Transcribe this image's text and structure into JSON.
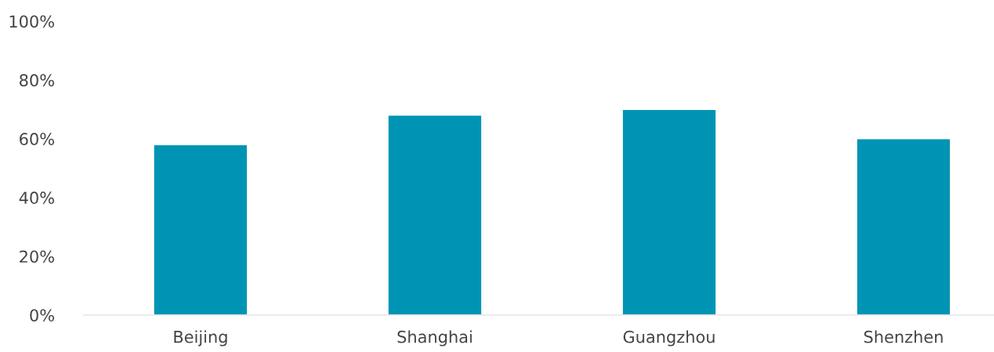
{
  "chart_data": {
    "type": "bar",
    "categories": [
      "Beijing",
      "Shanghai",
      "Guangzhou",
      "Shenzhen"
    ],
    "values": [
      58,
      68,
      70,
      60
    ],
    "color": "#0094b4",
    "ylim": [
      0,
      100
    ],
    "yticks": [
      {
        "value": 0,
        "label": "0%"
      },
      {
        "value": 20,
        "label": "20%"
      },
      {
        "value": 40,
        "label": "40%"
      },
      {
        "value": 60,
        "label": "60%"
      },
      {
        "value": 80,
        "label": "80%"
      },
      {
        "value": 100,
        "label": "100%"
      }
    ],
    "grid": false
  }
}
